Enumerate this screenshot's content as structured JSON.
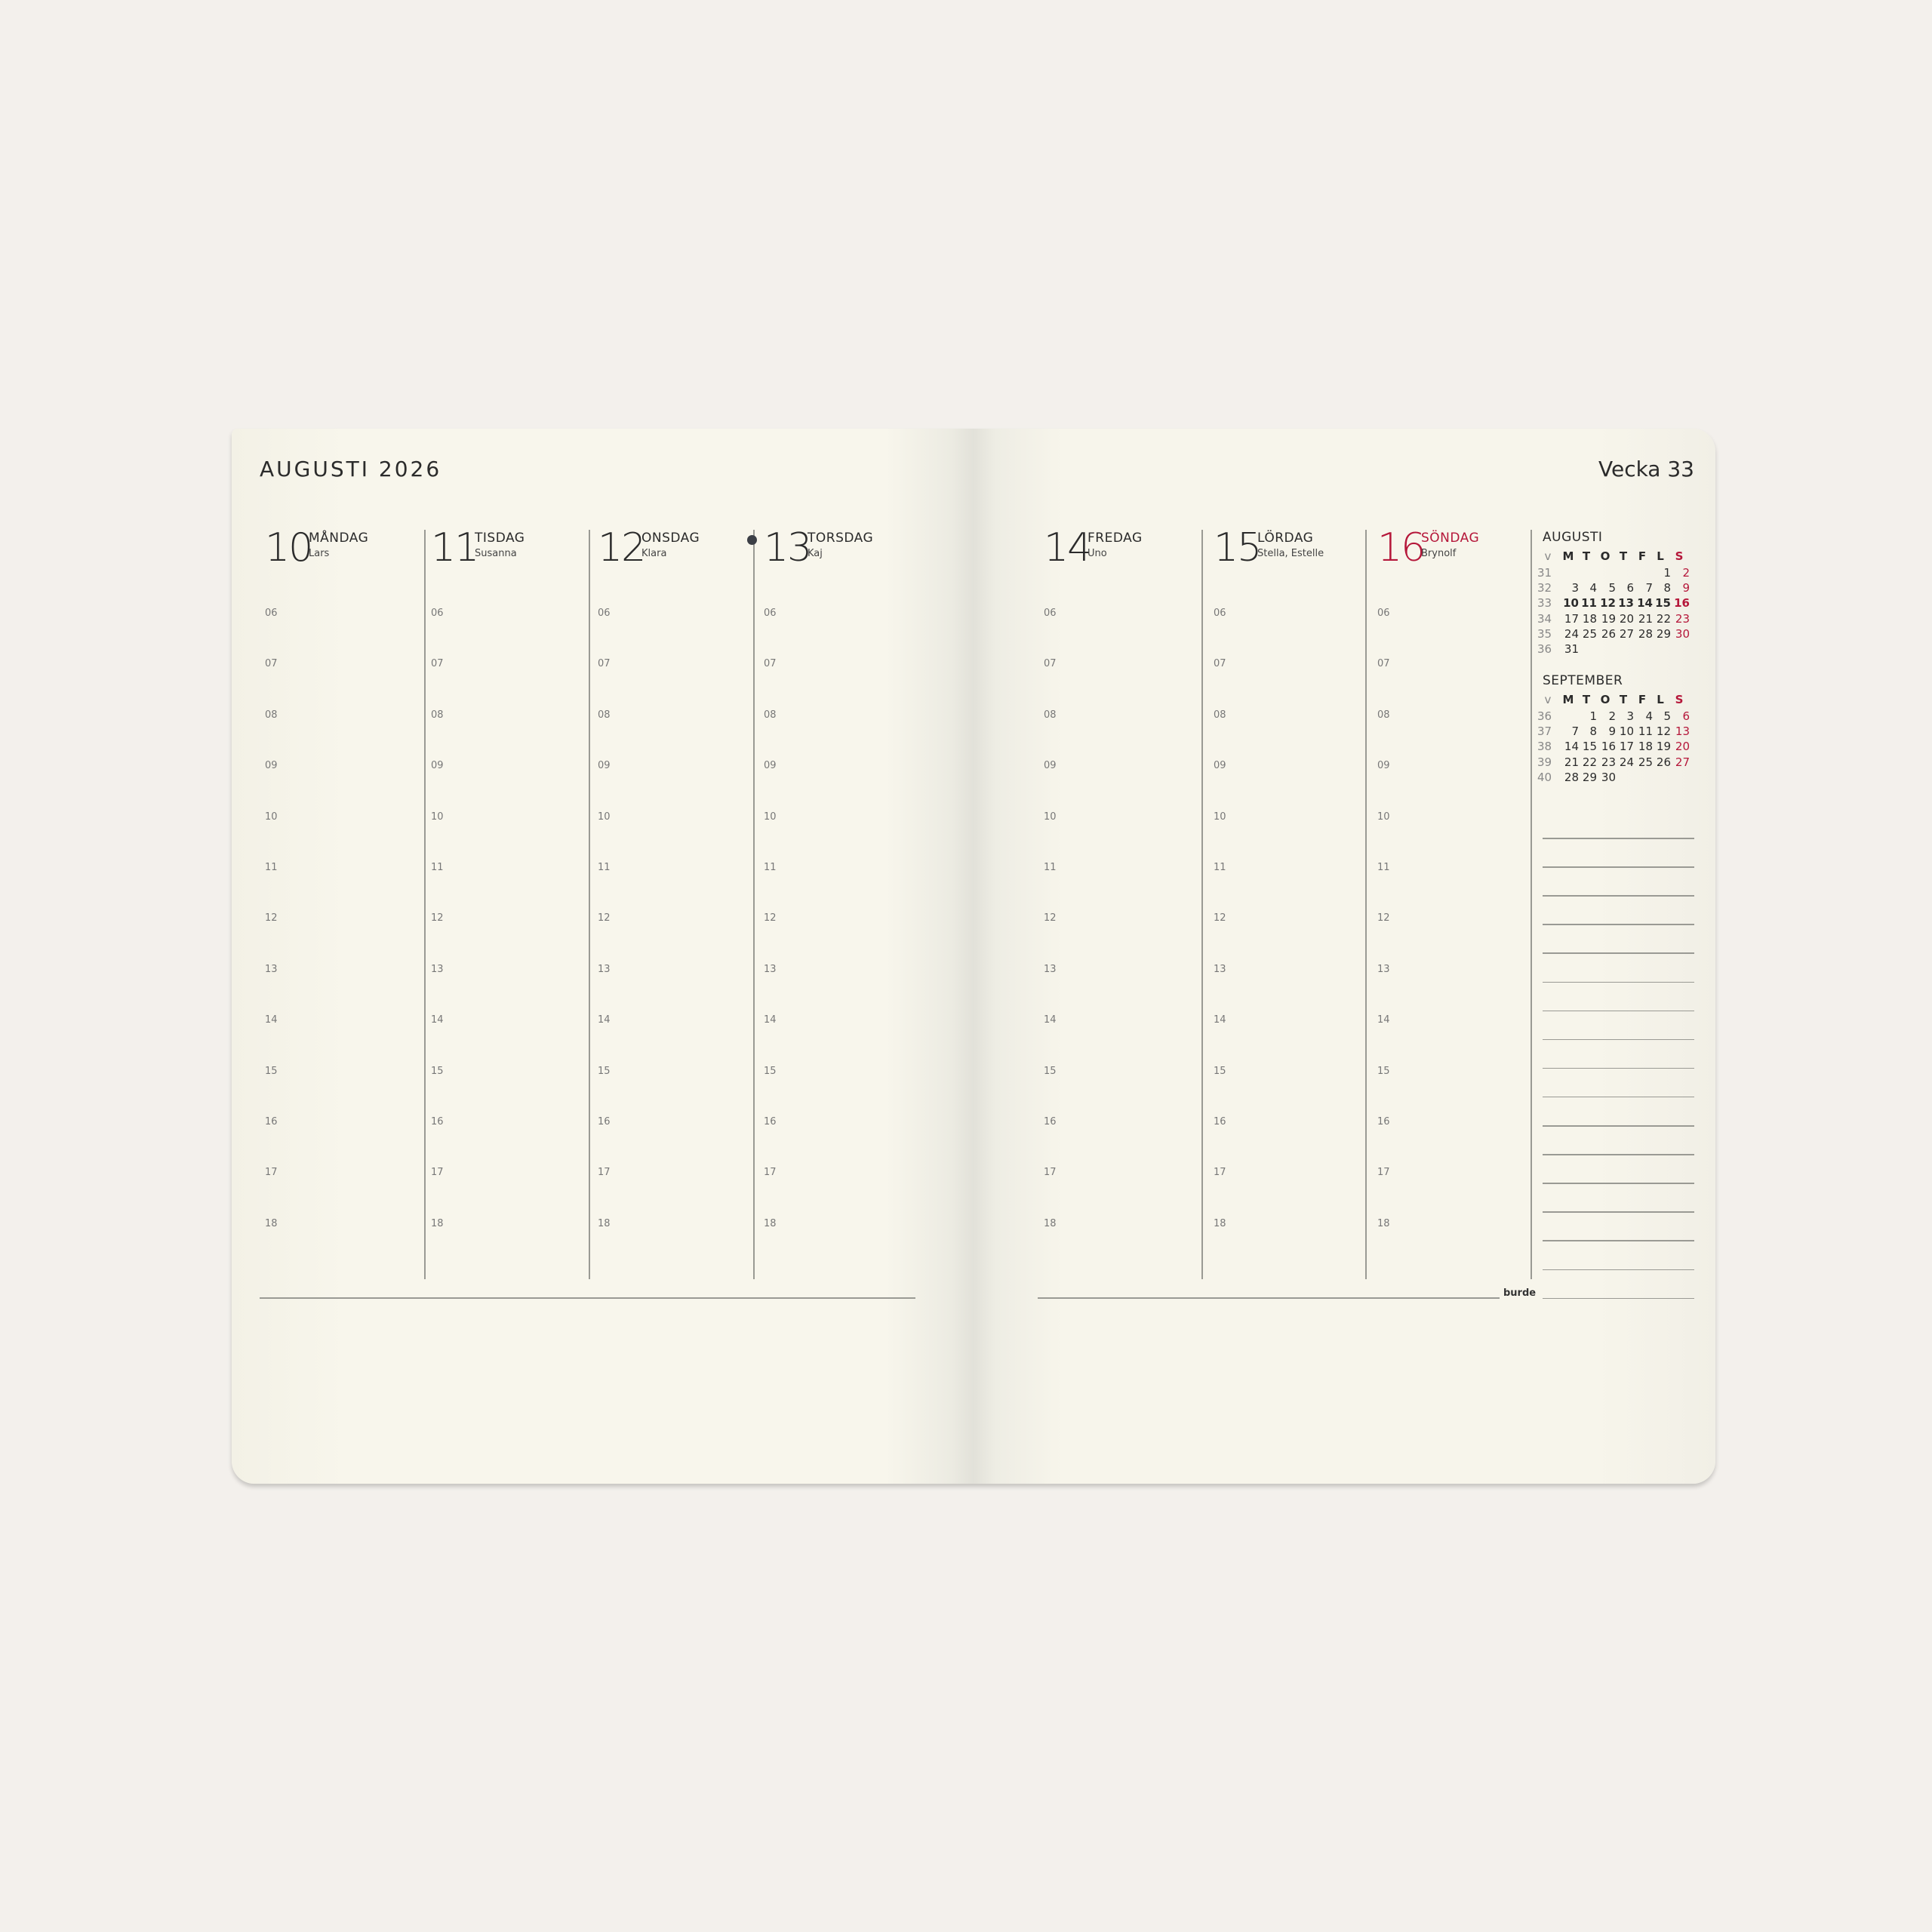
{
  "header": {
    "month_title": "AUGUSTI 2026",
    "week_label": "Vecka 33"
  },
  "days": [
    {
      "num": "10",
      "name": "MÅNDAG",
      "nameday": "Lars",
      "sunday": false,
      "dot": false
    },
    {
      "num": "11",
      "name": "TISDAG",
      "nameday": "Susanna",
      "sunday": false,
      "dot": false
    },
    {
      "num": "12",
      "name": "ONSDAG",
      "nameday": "Klara",
      "sunday": false,
      "dot": true
    },
    {
      "num": "13",
      "name": "TORSDAG",
      "nameday": "Kaj",
      "sunday": false,
      "dot": false
    },
    {
      "num": "14",
      "name": "FREDAG",
      "nameday": "Uno",
      "sunday": false,
      "dot": false
    },
    {
      "num": "15",
      "name": "LÖRDAG",
      "nameday": "Stella, Estelle",
      "sunday": false,
      "dot": false
    },
    {
      "num": "16",
      "name": "SÖNDAG",
      "nameday": "Brynolf",
      "sunday": true,
      "dot": false
    }
  ],
  "hours": [
    "06",
    "07",
    "08",
    "09",
    "10",
    "11",
    "12",
    "13",
    "14",
    "15",
    "16",
    "17",
    "18"
  ],
  "mini_calendars": [
    {
      "title": "AUGUSTI",
      "headers": [
        "v",
        "M",
        "T",
        "O",
        "T",
        "F",
        "L",
        "S"
      ],
      "current_week": "33",
      "weeks": [
        [
          "31",
          "",
          "",
          "",
          "",
          "",
          "1",
          "2"
        ],
        [
          "32",
          "3",
          "4",
          "5",
          "6",
          "7",
          "8",
          "9"
        ],
        [
          "33",
          "10",
          "11",
          "12",
          "13",
          "14",
          "15",
          "16"
        ],
        [
          "34",
          "17",
          "18",
          "19",
          "20",
          "21",
          "22",
          "23"
        ],
        [
          "35",
          "24",
          "25",
          "26",
          "27",
          "28",
          "29",
          "30"
        ],
        [
          "36",
          "31",
          "",
          "",
          "",
          "",
          "",
          ""
        ]
      ]
    },
    {
      "title": "SEPTEMBER",
      "headers": [
        "v",
        "M",
        "T",
        "O",
        "T",
        "F",
        "L",
        "S"
      ],
      "current_week": "",
      "weeks": [
        [
          "36",
          "",
          "1",
          "2",
          "3",
          "4",
          "5",
          "6"
        ],
        [
          "37",
          "7",
          "8",
          "9",
          "10",
          "11",
          "12",
          "13"
        ],
        [
          "38",
          "14",
          "15",
          "16",
          "17",
          "18",
          "19",
          "20"
        ],
        [
          "39",
          "21",
          "22",
          "23",
          "24",
          "25",
          "26",
          "27"
        ],
        [
          "40",
          "28",
          "29",
          "30",
          "",
          "",
          "",
          ""
        ]
      ]
    }
  ],
  "brand": "burde",
  "colors": {
    "sunday": "#b5173a",
    "text": "#2b2b2b",
    "background": "#f3f0ec",
    "page": "#f8f6ec"
  }
}
